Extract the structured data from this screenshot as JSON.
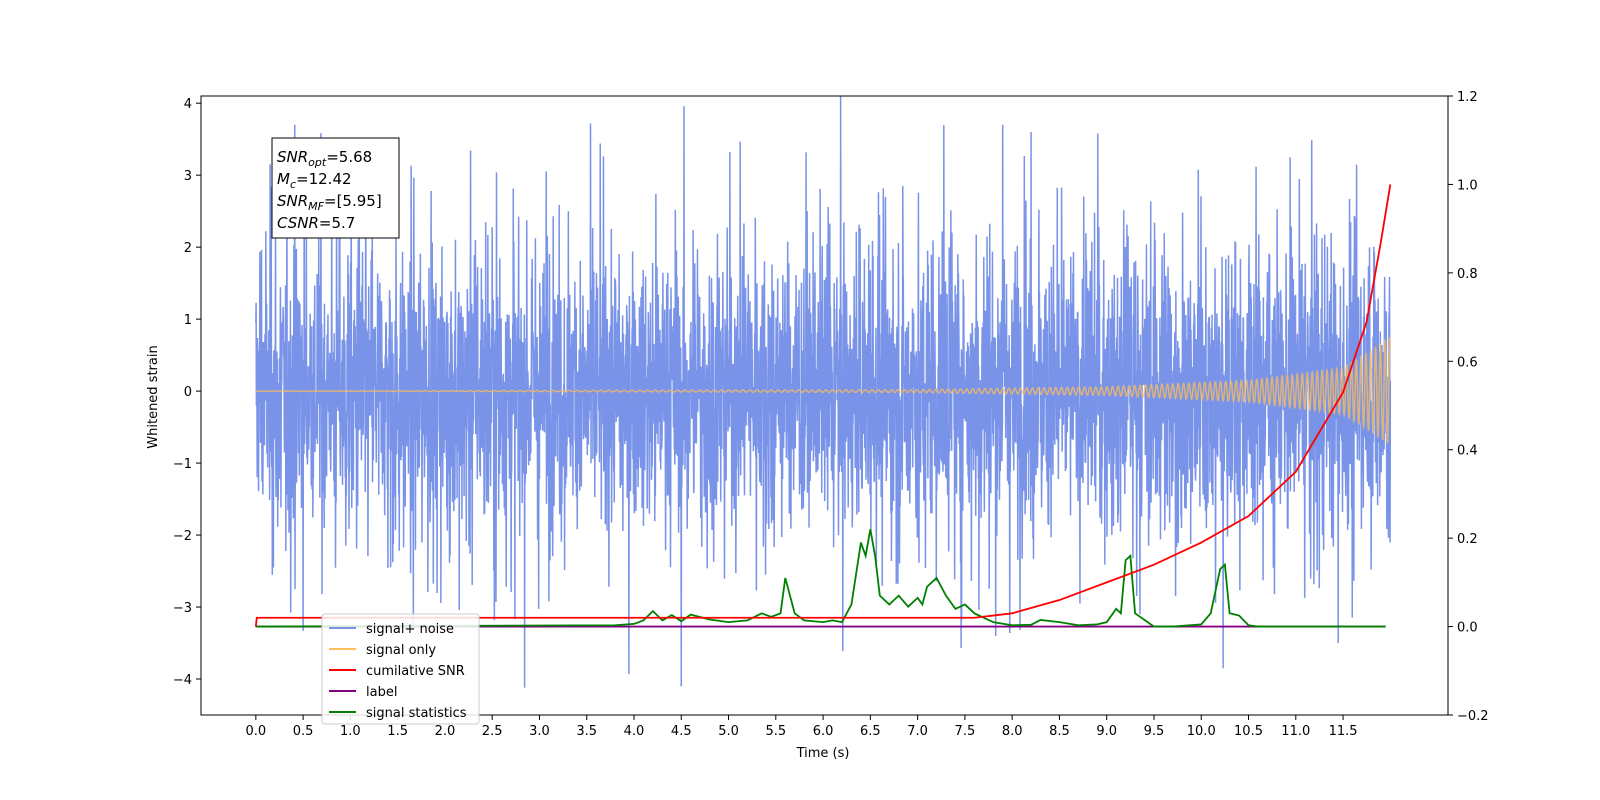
{
  "chart_data": {
    "type": "line",
    "xlabel": "Time (s)",
    "ylabel": "Whitened strain",
    "xlim": [
      -0.58,
      12.61
    ],
    "ylim": [
      -4.5,
      4.1
    ],
    "y2lim": [
      -0.2,
      1.2
    ],
    "x_ticks": [
      "0.0",
      "0.5",
      "1.0",
      "1.5",
      "2.0",
      "2.5",
      "3.0",
      "3.5",
      "4.0",
      "4.5",
      "5.0",
      "5.5",
      "6.0",
      "6.5",
      "7.0",
      "7.5",
      "8.0",
      "8.5",
      "9.0",
      "9.5",
      "10.0",
      "10.5",
      "11.0",
      "11.5"
    ],
    "y_ticks": [
      "−4",
      "−3",
      "−2",
      "−1",
      "0",
      "1",
      "2",
      "3",
      "4"
    ],
    "y2_ticks": [
      "−0.2",
      "0.0",
      "0.2",
      "0.4",
      "0.6",
      "0.8",
      "1.0",
      "1.2"
    ],
    "grid": false,
    "legend_position": "lower-left",
    "annotation": {
      "lines": [
        {
          "base": "SNR",
          "sub": "opt",
          "rest": "=5.68"
        },
        {
          "base": "M",
          "sub": "c",
          "rest": "=12.42"
        },
        {
          "base": "SNR",
          "sub": "MF",
          "rest": "=[5.95]"
        },
        {
          "base": "CSNR",
          "sub": "",
          "rest": "=5.7"
        }
      ]
    },
    "series": [
      {
        "name": "signal+ noise",
        "color": "#7893e8",
        "axis": "left",
        "x_range": [
          0.0,
          12.0
        ],
        "typical_amplitude": 1.3,
        "peaks": [
          {
            "x": 0.41,
            "y": 3.7
          },
          {
            "x": 4.5,
            "y": -4.1
          },
          {
            "x": 7.9,
            "y": 3.7
          },
          {
            "x": 10.23,
            "y": -3.85
          },
          {
            "x": 8.2,
            "y": 3.6
          },
          {
            "x": 11.45,
            "y": -3.5
          }
        ]
      },
      {
        "name": "signal only",
        "color": "#ffbe5a",
        "axis": "left",
        "x_range": [
          0.0,
          12.0
        ],
        "envelope": [
          [
            0.0,
            0.0
          ],
          [
            7.0,
            0.02
          ],
          [
            9.0,
            0.06
          ],
          [
            10.5,
            0.15
          ],
          [
            11.5,
            0.32
          ],
          [
            12.0,
            0.75
          ]
        ]
      },
      {
        "name": "cumilative SNR",
        "color": "#ff0000",
        "axis": "right",
        "x": [
          0.0,
          0.01,
          7.6,
          8.0,
          8.5,
          9.0,
          9.5,
          10.0,
          10.5,
          11.0,
          11.5,
          11.75,
          11.9,
          12.0
        ],
        "y": [
          0.0,
          0.02,
          0.02,
          0.03,
          0.06,
          0.1,
          0.14,
          0.19,
          0.25,
          0.35,
          0.53,
          0.69,
          0.87,
          1.0
        ]
      },
      {
        "name": "label",
        "color": "#800080",
        "axis": "right",
        "x": [
          0.0,
          11.95
        ],
        "y": [
          0.0,
          0.0
        ]
      },
      {
        "name": "signal statistics",
        "color": "#008000",
        "axis": "right",
        "x": [
          0.0,
          3.8,
          4.0,
          4.1,
          4.2,
          4.3,
          4.4,
          4.5,
          4.6,
          4.8,
          5.0,
          5.2,
          5.35,
          5.45,
          5.55,
          5.6,
          5.7,
          5.8,
          6.0,
          6.1,
          6.2,
          6.3,
          6.4,
          6.45,
          6.5,
          6.55,
          6.6,
          6.7,
          6.8,
          6.9,
          7.0,
          7.05,
          7.1,
          7.2,
          7.3,
          7.4,
          7.5,
          7.6,
          7.8,
          8.0,
          8.2,
          8.3,
          8.5,
          8.7,
          8.9,
          9.0,
          9.1,
          9.15,
          9.2,
          9.25,
          9.3,
          9.5,
          9.7,
          10.0,
          10.1,
          10.2,
          10.25,
          10.3,
          10.4,
          10.5,
          10.6,
          10.8,
          11.95
        ],
        "y": [
          0.0,
          0.003,
          0.006,
          0.014,
          0.035,
          0.014,
          0.026,
          0.012,
          0.027,
          0.016,
          0.01,
          0.014,
          0.03,
          0.022,
          0.03,
          0.11,
          0.03,
          0.014,
          0.01,
          0.014,
          0.01,
          0.05,
          0.19,
          0.16,
          0.22,
          0.16,
          0.07,
          0.05,
          0.07,
          0.045,
          0.065,
          0.05,
          0.09,
          0.11,
          0.07,
          0.04,
          0.05,
          0.03,
          0.01,
          0.003,
          0.004,
          0.015,
          0.01,
          0.003,
          0.005,
          0.01,
          0.04,
          0.03,
          0.15,
          0.16,
          0.03,
          0.0,
          0.0,
          0.005,
          0.03,
          0.13,
          0.14,
          0.03,
          0.025,
          0.003,
          0.0,
          0.0,
          0.0
        ]
      }
    ]
  }
}
